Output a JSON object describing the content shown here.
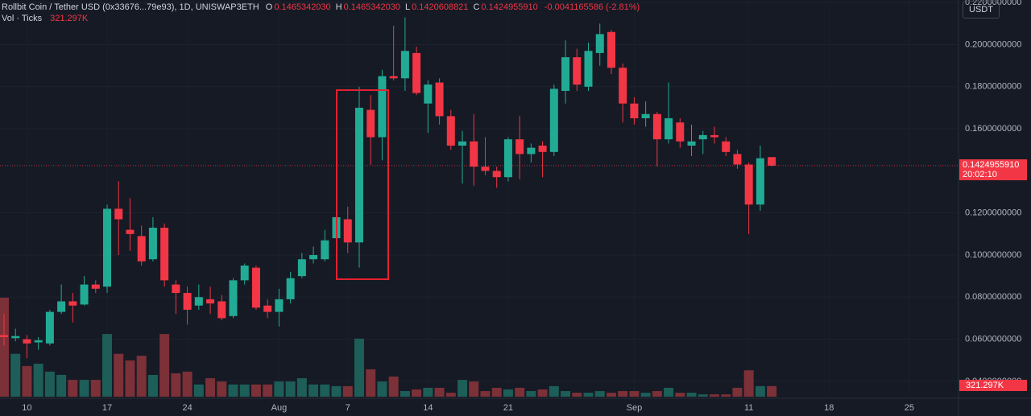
{
  "chart_data": {
    "type": "candlestick",
    "title": "Rollbit Coin / Tether USD (0x33676...79e93), 1D, UNISWAP3ETH",
    "ohlc_keys": [
      "O",
      "H",
      "L",
      "C"
    ],
    "ohlc_labels": [
      "0.1465342030",
      "0.1465342030",
      "0.1420608821",
      "0.1424955910"
    ],
    "change_label": "-0.0041165586 (-2.81%)",
    "volume_title": "Vol · Ticks",
    "volume_last_label": "321.297K",
    "currency": "USDT",
    "last_price_label": "0.1424955910",
    "countdown": "20:02:10",
    "up_color": "#22ab94",
    "down_color": "#f23645",
    "up_volume_color": "#1d5e58",
    "down_volume_color": "#7c3037",
    "grid": true,
    "open": [
      0.062,
      0.0605,
      0.06,
      0.0585,
      0.058,
      0.073,
      0.078,
      0.0765,
      0.086,
      0.085,
      0.122,
      0.112,
      0.109,
      0.098,
      0.113,
      0.086,
      0.082,
      0.076,
      0.079,
      0.078,
      0.071,
      0.088,
      0.094,
      0.076,
      0.073,
      0.079,
      0.09,
      0.098,
      0.098,
      0.108,
      0.117,
      0.106,
      0.169,
      0.156,
      0.185,
      0.184,
      0.196,
      0.172,
      0.182,
      0.166,
      0.152,
      0.154,
      0.142,
      0.14,
      0.137,
      0.155,
      0.148,
      0.152,
      0.149,
      0.178,
      0.194,
      0.18,
      0.196,
      0.206,
      0.189,
      0.172,
      0.165,
      0.167,
      0.155,
      0.163,
      0.152,
      0.155,
      0.157,
      0.154,
      0.148,
      0.143,
      0.124,
      0.146534203
    ],
    "high": [
      0.072,
      0.065,
      0.062,
      0.061,
      0.074,
      0.086,
      0.082,
      0.09,
      0.088,
      0.124,
      0.135,
      0.127,
      0.114,
      0.118,
      0.115,
      0.088,
      0.085,
      0.086,
      0.085,
      0.081,
      0.089,
      0.096,
      0.095,
      0.079,
      0.084,
      0.092,
      0.101,
      0.104,
      0.112,
      0.119,
      0.123,
      0.18,
      0.176,
      0.188,
      0.209,
      0.213,
      0.199,
      0.183,
      0.184,
      0.169,
      0.159,
      0.167,
      0.156,
      0.142,
      0.156,
      0.166,
      0.153,
      0.154,
      0.181,
      0.202,
      0.198,
      0.201,
      0.21,
      0.207,
      0.191,
      0.175,
      0.173,
      0.168,
      0.182,
      0.165,
      0.162,
      0.159,
      0.161,
      0.156,
      0.15,
      0.144,
      0.152,
      0.146534203
    ],
    "low": [
      0.057,
      0.059,
      0.051,
      0.055,
      0.057,
      0.072,
      0.068,
      0.076,
      0.082,
      0.082,
      0.1,
      0.102,
      0.095,
      0.097,
      0.085,
      0.072,
      0.067,
      0.074,
      0.072,
      0.069,
      0.07,
      0.086,
      0.074,
      0.07,
      0.066,
      0.077,
      0.089,
      0.096,
      0.097,
      0.105,
      0.101,
      0.094,
      0.143,
      0.145,
      0.183,
      0.178,
      0.176,
      0.158,
      0.162,
      0.15,
      0.134,
      0.133,
      0.138,
      0.132,
      0.135,
      0.136,
      0.144,
      0.137,
      0.147,
      0.172,
      0.178,
      0.178,
      0.19,
      0.186,
      0.163,
      0.162,
      0.161,
      0.142,
      0.153,
      0.151,
      0.147,
      0.148,
      0.153,
      0.147,
      0.141,
      0.11,
      0.121,
      0.1420608821
    ],
    "close": [
      0.061,
      0.0615,
      0.058,
      0.0595,
      0.073,
      0.078,
      0.076,
      0.086,
      0.084,
      0.122,
      0.117,
      0.11,
      0.097,
      0.113,
      0.088,
      0.082,
      0.074,
      0.08,
      0.077,
      0.07,
      0.088,
      0.095,
      0.075,
      0.073,
      0.079,
      0.089,
      0.098,
      0.1,
      0.107,
      0.118,
      0.106,
      0.17,
      0.156,
      0.185,
      0.184,
      0.197,
      0.177,
      0.181,
      0.166,
      0.152,
      0.154,
      0.142,
      0.14,
      0.137,
      0.155,
      0.148,
      0.151,
      0.149,
      0.179,
      0.194,
      0.181,
      0.197,
      0.205,
      0.189,
      0.172,
      0.165,
      0.167,
      0.155,
      0.165,
      0.154,
      0.154,
      0.157,
      0.156,
      0.149,
      0.143,
      0.124,
      0.146,
      0.142495591
    ],
    "volume": [
      3000000,
      1300000,
      930000,
      1000000,
      760000,
      660000,
      510000,
      510000,
      510000,
      1900000,
      1300000,
      1100000,
      1240000,
      660000,
      1900000,
      710000,
      760000,
      370000,
      560000,
      460000,
      370000,
      370000,
      370000,
      370000,
      460000,
      460000,
      560000,
      370000,
      370000,
      320000,
      320000,
      1760000,
      830000,
      460000,
      610000,
      170000,
      220000,
      270000,
      270000,
      120000,
      510000,
      460000,
      170000,
      270000,
      220000,
      270000,
      170000,
      220000,
      320000,
      170000,
      120000,
      120000,
      170000,
      120000,
      170000,
      170000,
      120000,
      170000,
      270000,
      120000,
      120000,
      70000,
      70000,
      70000,
      270000,
      800000,
      320000,
      321297
    ],
    "xlim": [
      -0.35,
      83.3
    ],
    "xticks": [
      {
        "value": 2,
        "label": "10"
      },
      {
        "value": 9,
        "label": "17"
      },
      {
        "value": 16,
        "label": "24"
      },
      {
        "value": 24,
        "label": "Aug"
      },
      {
        "value": 30,
        "label": "7"
      },
      {
        "value": 37,
        "label": "14"
      },
      {
        "value": 44,
        "label": "21"
      },
      {
        "value": 55,
        "label": "Sep"
      },
      {
        "value": 65,
        "label": "11"
      },
      {
        "value": 72,
        "label": "18"
      },
      {
        "value": 79,
        "label": "25"
      }
    ],
    "ylim": [
      0.0327,
      0.2212
    ],
    "yticks": [
      {
        "value": 0.04,
        "label": "0.0400000000"
      },
      {
        "value": 0.06,
        "label": "0.0600000000"
      },
      {
        "value": 0.08,
        "label": "0.0800000000"
      },
      {
        "value": 0.1,
        "label": "0.1000000000"
      },
      {
        "value": 0.12,
        "label": "0.1200000000"
      },
      {
        "value": 0.16,
        "label": "0.1600000000"
      },
      {
        "value": 0.18,
        "label": "0.1800000000"
      },
      {
        "value": 0.2,
        "label": "0.2000000000"
      },
      {
        "value": 0.22,
        "label": "0.2200000000"
      }
    ],
    "vlim": [
      0,
      4000000
    ]
  }
}
